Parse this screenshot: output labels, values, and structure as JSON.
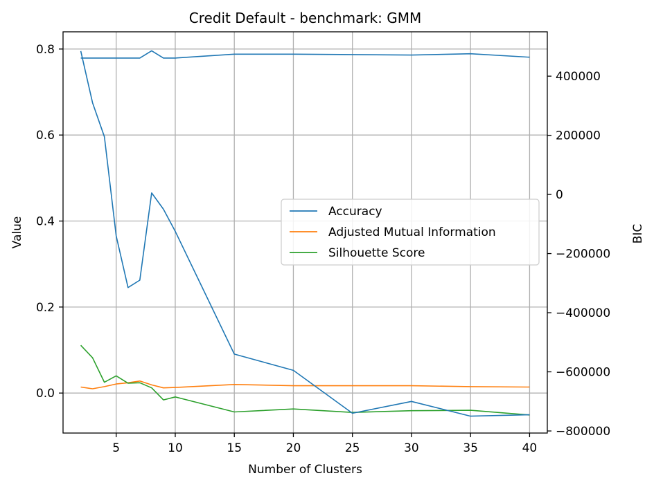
{
  "chart_data": {
    "type": "line",
    "title": "Credit Default - benchmark: GMM",
    "xlabel": "Number of Clusters",
    "ylabel": "Value",
    "y2label": "BIC",
    "xlim": [
      0.5,
      41.5
    ],
    "ylim": [
      -0.093,
      0.84
    ],
    "y2lim": [
      -807000,
      550000
    ],
    "x_ticks": [
      5,
      10,
      15,
      20,
      25,
      30,
      35,
      40
    ],
    "y_ticks": [
      0.0,
      0.2,
      0.4,
      0.6,
      0.8
    ],
    "y2_ticks": [
      -800000,
      -600000,
      -400000,
      -200000,
      0,
      200000,
      400000
    ],
    "grid": true,
    "legend_position": "center-right",
    "series": [
      {
        "name": "Accuracy",
        "axis": "left",
        "color": "#1f77b4",
        "x": [
          2,
          3,
          4,
          5,
          6,
          7,
          8,
          9,
          10,
          15,
          20,
          25,
          30,
          35,
          40
        ],
        "values": [
          0.779,
          0.779,
          0.779,
          0.779,
          0.779,
          0.779,
          0.796,
          0.779,
          0.779,
          0.788,
          0.788,
          0.787,
          0.786,
          0.789,
          0.781
        ]
      },
      {
        "name": "Adjusted Mutual Information",
        "axis": "left",
        "color": "#ff7f0e",
        "x": [
          2,
          3,
          4,
          5,
          6,
          7,
          8,
          9,
          10,
          15,
          20,
          25,
          30,
          35,
          40
        ],
        "values": [
          0.014,
          0.01,
          0.015,
          0.021,
          0.024,
          0.028,
          0.019,
          0.012,
          0.013,
          0.02,
          0.017,
          0.017,
          0.017,
          0.015,
          0.014
        ]
      },
      {
        "name": "Silhouette Score",
        "axis": "left",
        "color": "#2ca02c",
        "x": [
          2,
          3,
          4,
          5,
          6,
          7,
          8,
          9,
          10,
          15,
          20,
          25,
          30,
          35,
          40
        ],
        "values": [
          0.111,
          0.082,
          0.025,
          0.04,
          0.023,
          0.024,
          0.012,
          -0.016,
          -0.009,
          -0.044,
          -0.037,
          -0.045,
          -0.041,
          -0.04,
          -0.051
        ]
      },
      {
        "name": "BIC",
        "axis": "right",
        "color": "#1f77b4",
        "x": [
          2,
          3,
          4,
          5,
          6,
          7,
          8,
          9,
          10,
          15,
          20,
          25,
          30,
          35,
          40
        ],
        "values": [
          485000,
          310000,
          195000,
          -140000,
          -315000,
          -290000,
          5000,
          -50000,
          -125000,
          -540000,
          -595000,
          -740000,
          -700000,
          -750000,
          -745000
        ]
      }
    ]
  }
}
